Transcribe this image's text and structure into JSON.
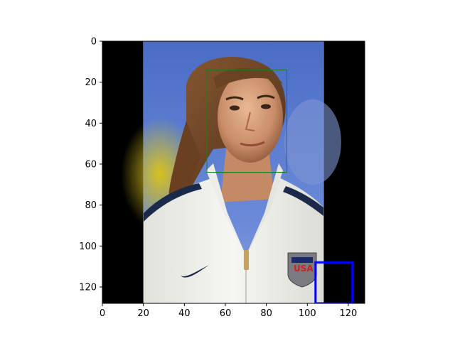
{
  "chart_data": {
    "type": "image",
    "title": "",
    "xlabel": "",
    "ylabel": "",
    "xlim": [
      0,
      128
    ],
    "ylim": [
      128,
      0
    ],
    "x_ticks": [
      0,
      20,
      40,
      60,
      80,
      100,
      120
    ],
    "y_ticks": [
      0,
      20,
      40,
      60,
      80,
      100,
      120
    ],
    "grid": false,
    "image": {
      "content": "portrait photo of a woman in a white team jacket with a crest, padded left and right with black bars",
      "photo_x_range": [
        20,
        108
      ],
      "photo_y_range": [
        0,
        128
      ],
      "padding_color": "#000000"
    },
    "boxes": [
      {
        "name": "face-box",
        "color": "#1a7f1a",
        "linewidth": 1,
        "x0": 51,
        "y0": 14,
        "x1": 90,
        "y1": 64
      },
      {
        "name": "corner-box",
        "color": "#0000ff",
        "linewidth": 3,
        "x0": 104,
        "y0": 108,
        "x1": 122,
        "y1": 128
      }
    ]
  }
}
